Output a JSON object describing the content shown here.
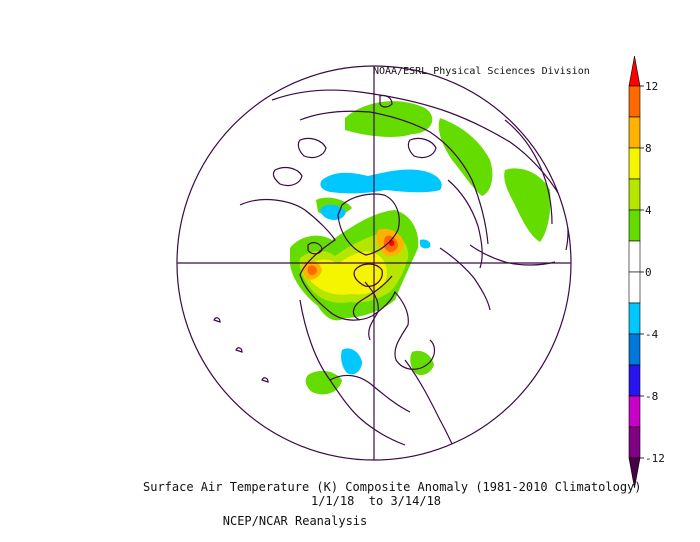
{
  "map": {
    "credit": "NOAA/ESRL Physical Sciences Division",
    "title_line1": "Surface Air Temperature (K) Composite Anomaly (1981-2010 Climatology)",
    "title_line2": "1/1/18  to 3/14/18",
    "title_line3": "NCEP/NCAR Reanalysis",
    "projection": "north polar stereographic",
    "variable": "Surface Air Temperature",
    "units": "K"
  },
  "colorbar": {
    "tick_labels": [
      "12",
      "8",
      "4",
      "0",
      "-4",
      "-8",
      "-12"
    ],
    "bins": [
      {
        "from": 12,
        "to": 14,
        "color": "#ff0000"
      },
      {
        "from": 10,
        "to": 12,
        "color": "#ff6a00"
      },
      {
        "from": 8,
        "to": 10,
        "color": "#ffb300"
      },
      {
        "from": 6,
        "to": 8,
        "color": "#f5f500"
      },
      {
        "from": 4,
        "to": 6,
        "color": "#b4e600"
      },
      {
        "from": 2,
        "to": 4,
        "color": "#64dc00"
      },
      {
        "from": 0,
        "to": 2,
        "color": "#ffffff"
      },
      {
        "from": -2,
        "to": 0,
        "color": "#ffffff"
      },
      {
        "from": -4,
        "to": -2,
        "color": "#00c8ff"
      },
      {
        "from": -6,
        "to": -4,
        "color": "#0078dc"
      },
      {
        "from": -8,
        "to": -6,
        "color": "#2814f0"
      },
      {
        "from": -10,
        "to": -8,
        "color": "#c800c8"
      },
      {
        "from": -12,
        "to": -10,
        "color": "#820082"
      },
      {
        "from": -14,
        "to": -12,
        "color": "#460046"
      }
    ]
  },
  "colors": {
    "coastline": "#3c0a46",
    "grid": "#3c0a46"
  }
}
